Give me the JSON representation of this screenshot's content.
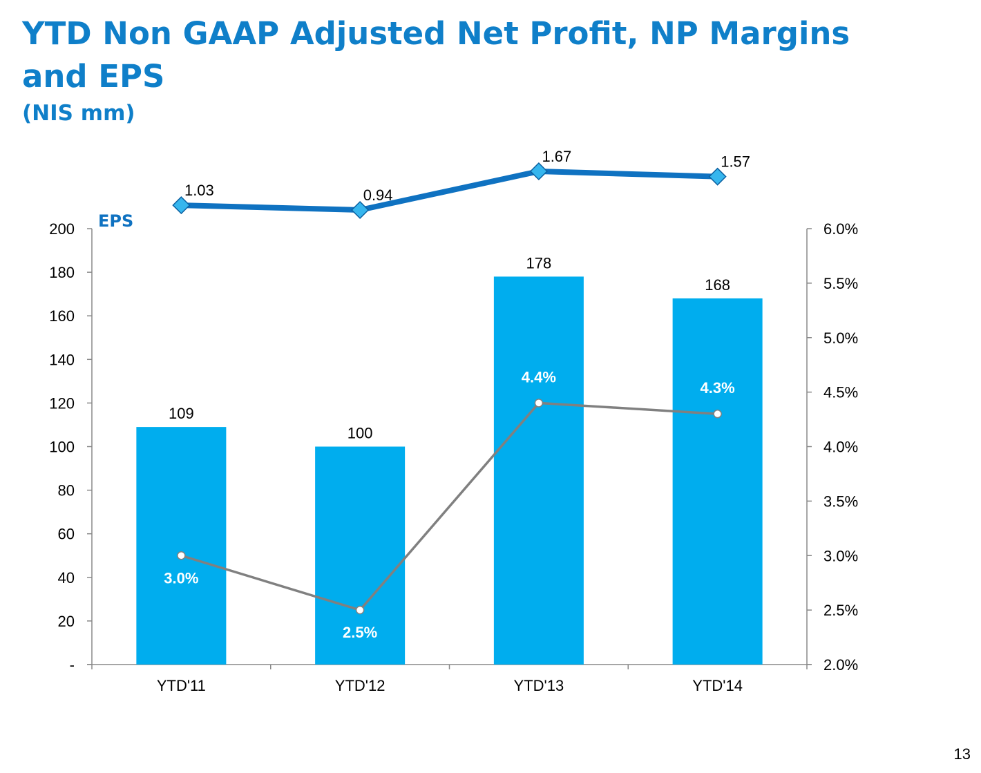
{
  "title": "YTD Non GAAP Adjusted Net Profit, NP Margins and EPS",
  "subtitle": "(NIS mm)",
  "page_number": "13",
  "colors": {
    "title": "#0f7fc9",
    "bars": "#00adee",
    "eps_line": "#0f72c1",
    "margin_line": "#808080",
    "axis": "#888888"
  },
  "chart_data": {
    "type": "bar",
    "categories": [
      "YTD'11",
      "YTD'12",
      "YTD'13",
      "YTD'14"
    ],
    "series": [
      {
        "values": [
          109,
          100,
          178,
          168
        ],
        "value_labels": [
          "109",
          "100",
          "178",
          "168"
        ],
        "kind": "bar",
        "axis": "left"
      },
      {
        "name": "EPS",
        "values": [
          1.03,
          0.94,
          1.67,
          1.57
        ],
        "value_labels": [
          "1.03",
          "0.94",
          "1.67",
          "1.57"
        ],
        "kind": "line",
        "marker": "diamond"
      },
      {
        "values": [
          3.0,
          2.5,
          4.4,
          4.3
        ],
        "value_labels": [
          "3.0%",
          "2.5%",
          "4.4%",
          "4.3%"
        ],
        "kind": "line",
        "axis": "right"
      }
    ],
    "left_axis": {
      "ylim": [
        0,
        200
      ],
      "ticks": [
        0,
        20,
        40,
        60,
        80,
        100,
        120,
        140,
        160,
        180,
        200
      ],
      "tick_labels": [
        "-",
        "20",
        "40",
        "60",
        "80",
        "100",
        "120",
        "140",
        "160",
        "180",
        "200"
      ]
    },
    "right_axis": {
      "ylim": [
        2.0,
        6.0
      ],
      "ticks": [
        2.0,
        2.5,
        3.0,
        3.5,
        4.0,
        4.5,
        5.0,
        5.5,
        6.0
      ],
      "tick_labels": [
        "2.0%",
        "2.5%",
        "3.0%",
        "3.5%",
        "4.0%",
        "4.5%",
        "5.0%",
        "5.5%",
        "6.0%"
      ]
    },
    "grid": false,
    "legend": "none"
  }
}
